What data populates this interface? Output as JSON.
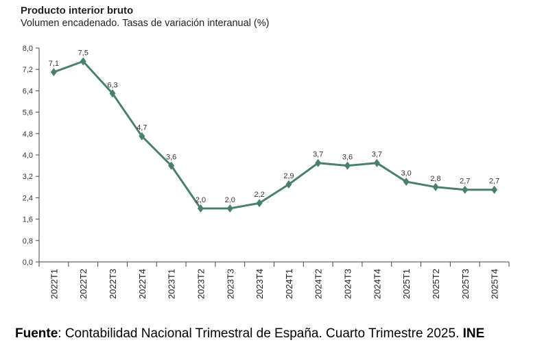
{
  "chart_data": {
    "type": "line",
    "title": "Producto interior bruto",
    "subtitle": "Volumen encadenado. Tasas de variación interanual (%)",
    "categories": [
      "2022T1",
      "2022T2",
      "2022T3",
      "2022T4",
      "2023T1",
      "2023T2",
      "2023T3",
      "2023T4",
      "2024T1",
      "2024T2",
      "2024T3",
      "2024T4",
      "2025T1",
      "2025T2",
      "2025T3",
      "2025T4"
    ],
    "values": [
      7.1,
      7.5,
      6.3,
      4.7,
      3.6,
      2.0,
      2.0,
      2.2,
      2.9,
      3.7,
      3.6,
      3.7,
      3.0,
      2.8,
      2.7,
      2.7
    ],
    "data_labels": [
      "7,1",
      "7,5",
      "6,3",
      "4,7",
      "3,6",
      "2,0",
      "2,0",
      "2,2",
      "2,9",
      "3,7",
      "3,6",
      "3,7",
      "3,0",
      "2,8",
      "2,7",
      "2,7"
    ],
    "ylim": [
      0,
      8
    ],
    "yticks": [
      "0,0",
      "0,8",
      "1,6",
      "2,4",
      "3,2",
      "4,0",
      "4,8",
      "5,6",
      "6,4",
      "7,2",
      "8,0"
    ],
    "grid": false,
    "marker": "diamond",
    "line_color": "#4a7f70"
  },
  "source": {
    "label": "Fuente",
    "text": ": Contabilidad Nacional Trimestral de España. Cuarto Trimestre 2025. ",
    "org": "INE"
  }
}
